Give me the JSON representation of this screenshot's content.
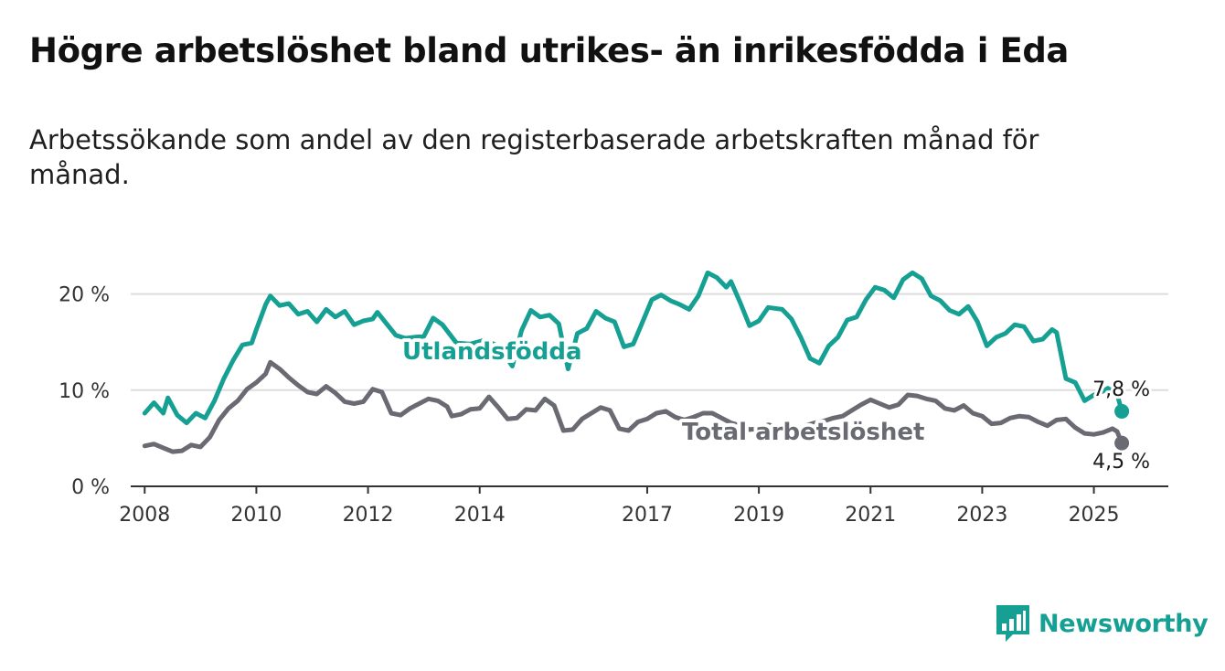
{
  "title": "Högre arbetslöshet bland utrikes- än inrikesfödda i Eda",
  "subtitle": "Arbetssökande som andel av den registerbaserade arbetskraften månad för månad.",
  "colors": {
    "utlandsfodda": "#16a093",
    "total": "#6a6a72",
    "grid": "#dddddd",
    "axis": "#333333",
    "brand": "#16a093"
  },
  "branding": {
    "name": "Newsworthy",
    "icon": "bar-chart-speech-bubble-icon"
  },
  "chart_data": {
    "type": "line",
    "x_axis": {
      "unit": "date",
      "range": [
        "2007-10",
        "2026-05"
      ],
      "ticks": [
        {
          "label": "2008",
          "date": "2008-01"
        },
        {
          "label": "2010",
          "date": "2010-01"
        },
        {
          "label": "2012",
          "date": "2012-01"
        },
        {
          "label": "2014",
          "date": "2014-01"
        },
        {
          "label": "2017",
          "date": "2017-01"
        },
        {
          "label": "2019",
          "date": "2019-01"
        },
        {
          "label": "2021",
          "date": "2021-01"
        },
        {
          "label": "2023",
          "date": "2023-01"
        },
        {
          "label": "2025",
          "date": "2025-01"
        }
      ]
    },
    "y_axis": {
      "range": [
        0,
        23
      ],
      "ticks": [
        {
          "label": "0 %",
          "value": 0
        },
        {
          "label": "10 %",
          "value": 10
        },
        {
          "label": "20 %",
          "value": 20
        }
      ]
    },
    "grid": "horizontal",
    "series": [
      {
        "name": "Utlandsfödda",
        "key": "utlandsfodda",
        "end_label": "7,8 %",
        "points": [
          [
            "2008-01",
            7.6
          ],
          [
            "2008-03",
            8.7
          ],
          [
            "2008-05",
            7.6
          ],
          [
            "2008-06",
            9.2
          ],
          [
            "2008-08",
            7.4
          ],
          [
            "2008-10",
            6.6
          ],
          [
            "2008-12",
            7.6
          ],
          [
            "2009-02",
            7.1
          ],
          [
            "2009-04",
            8.9
          ],
          [
            "2009-06",
            11.2
          ],
          [
            "2009-08",
            13.1
          ],
          [
            "2009-10",
            14.7
          ],
          [
            "2009-12",
            14.9
          ],
          [
            "2010-01",
            16.3
          ],
          [
            "2010-03",
            18.9
          ],
          [
            "2010-04",
            19.8
          ],
          [
            "2010-06",
            18.8
          ],
          [
            "2010-08",
            19.0
          ],
          [
            "2010-10",
            17.9
          ],
          [
            "2010-12",
            18.2
          ],
          [
            "2011-02",
            17.1
          ],
          [
            "2011-04",
            18.4
          ],
          [
            "2011-06",
            17.6
          ],
          [
            "2011-08",
            18.2
          ],
          [
            "2011-10",
            16.8
          ],
          [
            "2011-12",
            17.2
          ],
          [
            "2012-02",
            17.4
          ],
          [
            "2012-03",
            18.1
          ],
          [
            "2012-05",
            16.9
          ],
          [
            "2012-07",
            15.7
          ],
          [
            "2012-09",
            15.4
          ],
          [
            "2012-11",
            15.5
          ],
          [
            "2013-01",
            15.6
          ],
          [
            "2013-03",
            17.5
          ],
          [
            "2013-05",
            16.8
          ],
          [
            "2013-08",
            14.9
          ],
          [
            "2013-11",
            14.8
          ],
          [
            "2014-02",
            15.2
          ],
          [
            "2014-05",
            14.6
          ],
          [
            "2014-08",
            12.5
          ],
          [
            "2014-10",
            16.2
          ],
          [
            "2014-12",
            18.3
          ],
          [
            "2015-02",
            17.6
          ],
          [
            "2015-04",
            17.8
          ],
          [
            "2015-06",
            16.9
          ],
          [
            "2015-08",
            12.2
          ],
          [
            "2015-10",
            15.9
          ],
          [
            "2015-12",
            16.4
          ],
          [
            "2016-02",
            18.2
          ],
          [
            "2016-04",
            17.5
          ],
          [
            "2016-06",
            17.1
          ],
          [
            "2016-08",
            14.5
          ],
          [
            "2016-10",
            14.8
          ],
          [
            "2016-12",
            17.1
          ],
          [
            "2017-02",
            19.4
          ],
          [
            "2017-04",
            19.9
          ],
          [
            "2017-06",
            19.3
          ],
          [
            "2017-08",
            18.9
          ],
          [
            "2017-10",
            18.4
          ],
          [
            "2017-12",
            19.8
          ],
          [
            "2018-02",
            22.2
          ],
          [
            "2018-04",
            21.7
          ],
          [
            "2018-06",
            20.7
          ],
          [
            "2018-07",
            21.3
          ],
          [
            "2018-09",
            19.1
          ],
          [
            "2018-11",
            16.7
          ],
          [
            "2019-01",
            17.2
          ],
          [
            "2019-03",
            18.6
          ],
          [
            "2019-06",
            18.4
          ],
          [
            "2019-08",
            17.4
          ],
          [
            "2019-10",
            15.5
          ],
          [
            "2019-12",
            13.3
          ],
          [
            "2020-02",
            12.8
          ],
          [
            "2020-04",
            14.6
          ],
          [
            "2020-06",
            15.5
          ],
          [
            "2020-08",
            17.3
          ],
          [
            "2020-10",
            17.6
          ],
          [
            "2020-12",
            19.4
          ],
          [
            "2021-02",
            20.7
          ],
          [
            "2021-04",
            20.4
          ],
          [
            "2021-06",
            19.6
          ],
          [
            "2021-08",
            21.5
          ],
          [
            "2021-10",
            22.2
          ],
          [
            "2021-12",
            21.6
          ],
          [
            "2022-02",
            19.8
          ],
          [
            "2022-04",
            19.3
          ],
          [
            "2022-06",
            18.3
          ],
          [
            "2022-08",
            17.9
          ],
          [
            "2022-10",
            18.7
          ],
          [
            "2022-12",
            17.1
          ],
          [
            "2023-02",
            14.6
          ],
          [
            "2023-04",
            15.5
          ],
          [
            "2023-06",
            15.9
          ],
          [
            "2023-08",
            16.8
          ],
          [
            "2023-10",
            16.6
          ],
          [
            "2023-12",
            15.1
          ],
          [
            "2024-02",
            15.3
          ],
          [
            "2024-04",
            16.3
          ],
          [
            "2024-05",
            16.0
          ],
          [
            "2024-07",
            11.2
          ],
          [
            "2024-09",
            10.8
          ],
          [
            "2024-11",
            8.9
          ],
          [
            "2025-01",
            9.5
          ],
          [
            "2025-03",
            9.9
          ],
          [
            "2025-04",
            10.2
          ],
          [
            "2025-06",
            9.6
          ],
          [
            "2025-07",
            7.8
          ]
        ]
      },
      {
        "name": "Total arbetslöshet",
        "key": "total",
        "end_label": "4,5 %",
        "points": [
          [
            "2008-01",
            4.2
          ],
          [
            "2008-03",
            4.4
          ],
          [
            "2008-05",
            4.0
          ],
          [
            "2008-07",
            3.6
          ],
          [
            "2008-09",
            3.7
          ],
          [
            "2008-11",
            4.3
          ],
          [
            "2009-01",
            4.1
          ],
          [
            "2009-03",
            5.1
          ],
          [
            "2009-05",
            6.9
          ],
          [
            "2009-07",
            8.1
          ],
          [
            "2009-09",
            8.9
          ],
          [
            "2009-11",
            10.1
          ],
          [
            "2010-01",
            10.8
          ],
          [
            "2010-03",
            11.7
          ],
          [
            "2010-04",
            12.9
          ],
          [
            "2010-06",
            12.2
          ],
          [
            "2010-08",
            11.3
          ],
          [
            "2010-10",
            10.5
          ],
          [
            "2010-12",
            9.8
          ],
          [
            "2011-02",
            9.6
          ],
          [
            "2011-04",
            10.4
          ],
          [
            "2011-06",
            9.7
          ],
          [
            "2011-08",
            8.8
          ],
          [
            "2011-10",
            8.6
          ],
          [
            "2011-12",
            8.8
          ],
          [
            "2012-02",
            10.1
          ],
          [
            "2012-04",
            9.8
          ],
          [
            "2012-06",
            7.6
          ],
          [
            "2012-08",
            7.4
          ],
          [
            "2012-10",
            8.1
          ],
          [
            "2012-12",
            8.6
          ],
          [
            "2013-02",
            9.1
          ],
          [
            "2013-04",
            8.9
          ],
          [
            "2013-06",
            8.3
          ],
          [
            "2013-07",
            7.3
          ],
          [
            "2013-09",
            7.5
          ],
          [
            "2013-11",
            8.0
          ],
          [
            "2014-01",
            8.1
          ],
          [
            "2014-03",
            9.3
          ],
          [
            "2014-05",
            8.2
          ],
          [
            "2014-07",
            7.0
          ],
          [
            "2014-09",
            7.1
          ],
          [
            "2014-11",
            8.0
          ],
          [
            "2015-01",
            7.9
          ],
          [
            "2015-03",
            9.1
          ],
          [
            "2015-05",
            8.4
          ],
          [
            "2015-07",
            5.8
          ],
          [
            "2015-09",
            5.9
          ],
          [
            "2015-11",
            7.0
          ],
          [
            "2016-01",
            7.6
          ],
          [
            "2016-03",
            8.2
          ],
          [
            "2016-05",
            7.9
          ],
          [
            "2016-07",
            6.0
          ],
          [
            "2016-09",
            5.8
          ],
          [
            "2016-11",
            6.7
          ],
          [
            "2017-01",
            7.0
          ],
          [
            "2017-03",
            7.6
          ],
          [
            "2017-05",
            7.8
          ],
          [
            "2017-07",
            7.2
          ],
          [
            "2017-09",
            6.9
          ],
          [
            "2017-11",
            7.2
          ],
          [
            "2018-01",
            7.6
          ],
          [
            "2018-03",
            7.6
          ],
          [
            "2018-05",
            7.1
          ],
          [
            "2018-07",
            6.6
          ],
          [
            "2018-09",
            6.3
          ],
          [
            "2018-11",
            5.9
          ],
          [
            "2019-01",
            6.0
          ],
          [
            "2019-03",
            6.4
          ],
          [
            "2019-05",
            6.2
          ],
          [
            "2019-07",
            5.9
          ],
          [
            "2019-09",
            5.8
          ],
          [
            "2019-11",
            6.3
          ],
          [
            "2020-01",
            6.6
          ],
          [
            "2020-03",
            6.8
          ],
          [
            "2020-05",
            7.1
          ],
          [
            "2020-07",
            7.3
          ],
          [
            "2020-09",
            7.9
          ],
          [
            "2020-11",
            8.5
          ],
          [
            "2021-01",
            9.0
          ],
          [
            "2021-03",
            8.6
          ],
          [
            "2021-05",
            8.2
          ],
          [
            "2021-07",
            8.5
          ],
          [
            "2021-09",
            9.5
          ],
          [
            "2021-11",
            9.4
          ],
          [
            "2022-01",
            9.1
          ],
          [
            "2022-03",
            8.9
          ],
          [
            "2022-05",
            8.1
          ],
          [
            "2022-07",
            7.9
          ],
          [
            "2022-09",
            8.4
          ],
          [
            "2022-11",
            7.6
          ],
          [
            "2023-01",
            7.3
          ],
          [
            "2023-03",
            6.5
          ],
          [
            "2023-05",
            6.6
          ],
          [
            "2023-07",
            7.1
          ],
          [
            "2023-09",
            7.3
          ],
          [
            "2023-11",
            7.2
          ],
          [
            "2024-01",
            6.7
          ],
          [
            "2024-03",
            6.3
          ],
          [
            "2024-05",
            6.9
          ],
          [
            "2024-07",
            7.0
          ],
          [
            "2024-09",
            6.1
          ],
          [
            "2024-11",
            5.5
          ],
          [
            "2025-01",
            5.4
          ],
          [
            "2025-03",
            5.6
          ],
          [
            "2025-05",
            6.0
          ],
          [
            "2025-06",
            5.7
          ],
          [
            "2025-07",
            4.5
          ]
        ]
      }
    ]
  }
}
